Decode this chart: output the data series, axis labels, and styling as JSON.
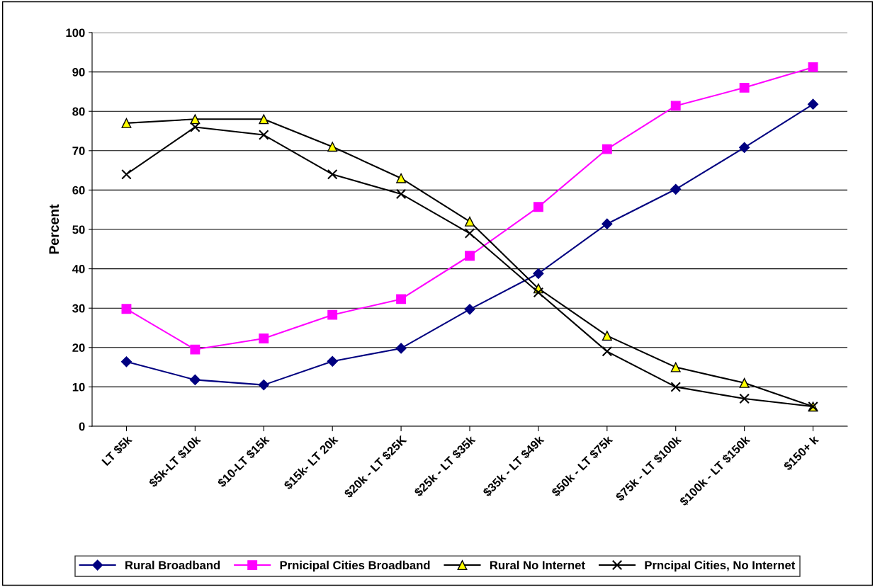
{
  "chart_data": {
    "type": "line",
    "ylabel": "Percent",
    "categories": [
      "LT $5k",
      "$5k-LT $10k",
      "$10-LT $15k",
      "$15k- LT 20k",
      "$20k - LT $25K",
      "$25k - LT $35k",
      "$35k - LT $49k",
      "$50k - LT $75k",
      "$75k - LT $100k",
      "$100k - LT $150k",
      "$150+ k"
    ],
    "series": [
      {
        "name": "Rural Broadband",
        "color": "#000080",
        "marker": "diamond",
        "values": [
          16.4,
          11.8,
          10.5,
          16.5,
          19.8,
          29.7,
          38.8,
          51.4,
          60.2,
          70.8,
          81.8
        ]
      },
      {
        "name": "Prnicipal Cities Broadband",
        "color": "#ff00ff",
        "marker": "square",
        "values": [
          29.8,
          19.5,
          22.3,
          28.3,
          32.3,
          43.3,
          55.7,
          70.4,
          81.4,
          86.0,
          91.2
        ]
      },
      {
        "name": "Rural No Internet",
        "color": "#000000",
        "marker": "triangle",
        "values": [
          77,
          78,
          78,
          71,
          63,
          52,
          35,
          23,
          15,
          11,
          5
        ]
      },
      {
        "name": "Prncipal Cities, No Internet",
        "color": "#000000",
        "marker": "cross",
        "values": [
          64,
          76,
          74,
          64,
          59,
          49,
          34,
          19,
          10,
          7,
          5
        ]
      }
    ],
    "ylim": [
      0,
      100
    ],
    "yticks": [
      0,
      10,
      20,
      30,
      40,
      50,
      60,
      70,
      80,
      90,
      100
    ],
    "grid": "y",
    "legend": "bottom",
    "line_style": "solid"
  }
}
